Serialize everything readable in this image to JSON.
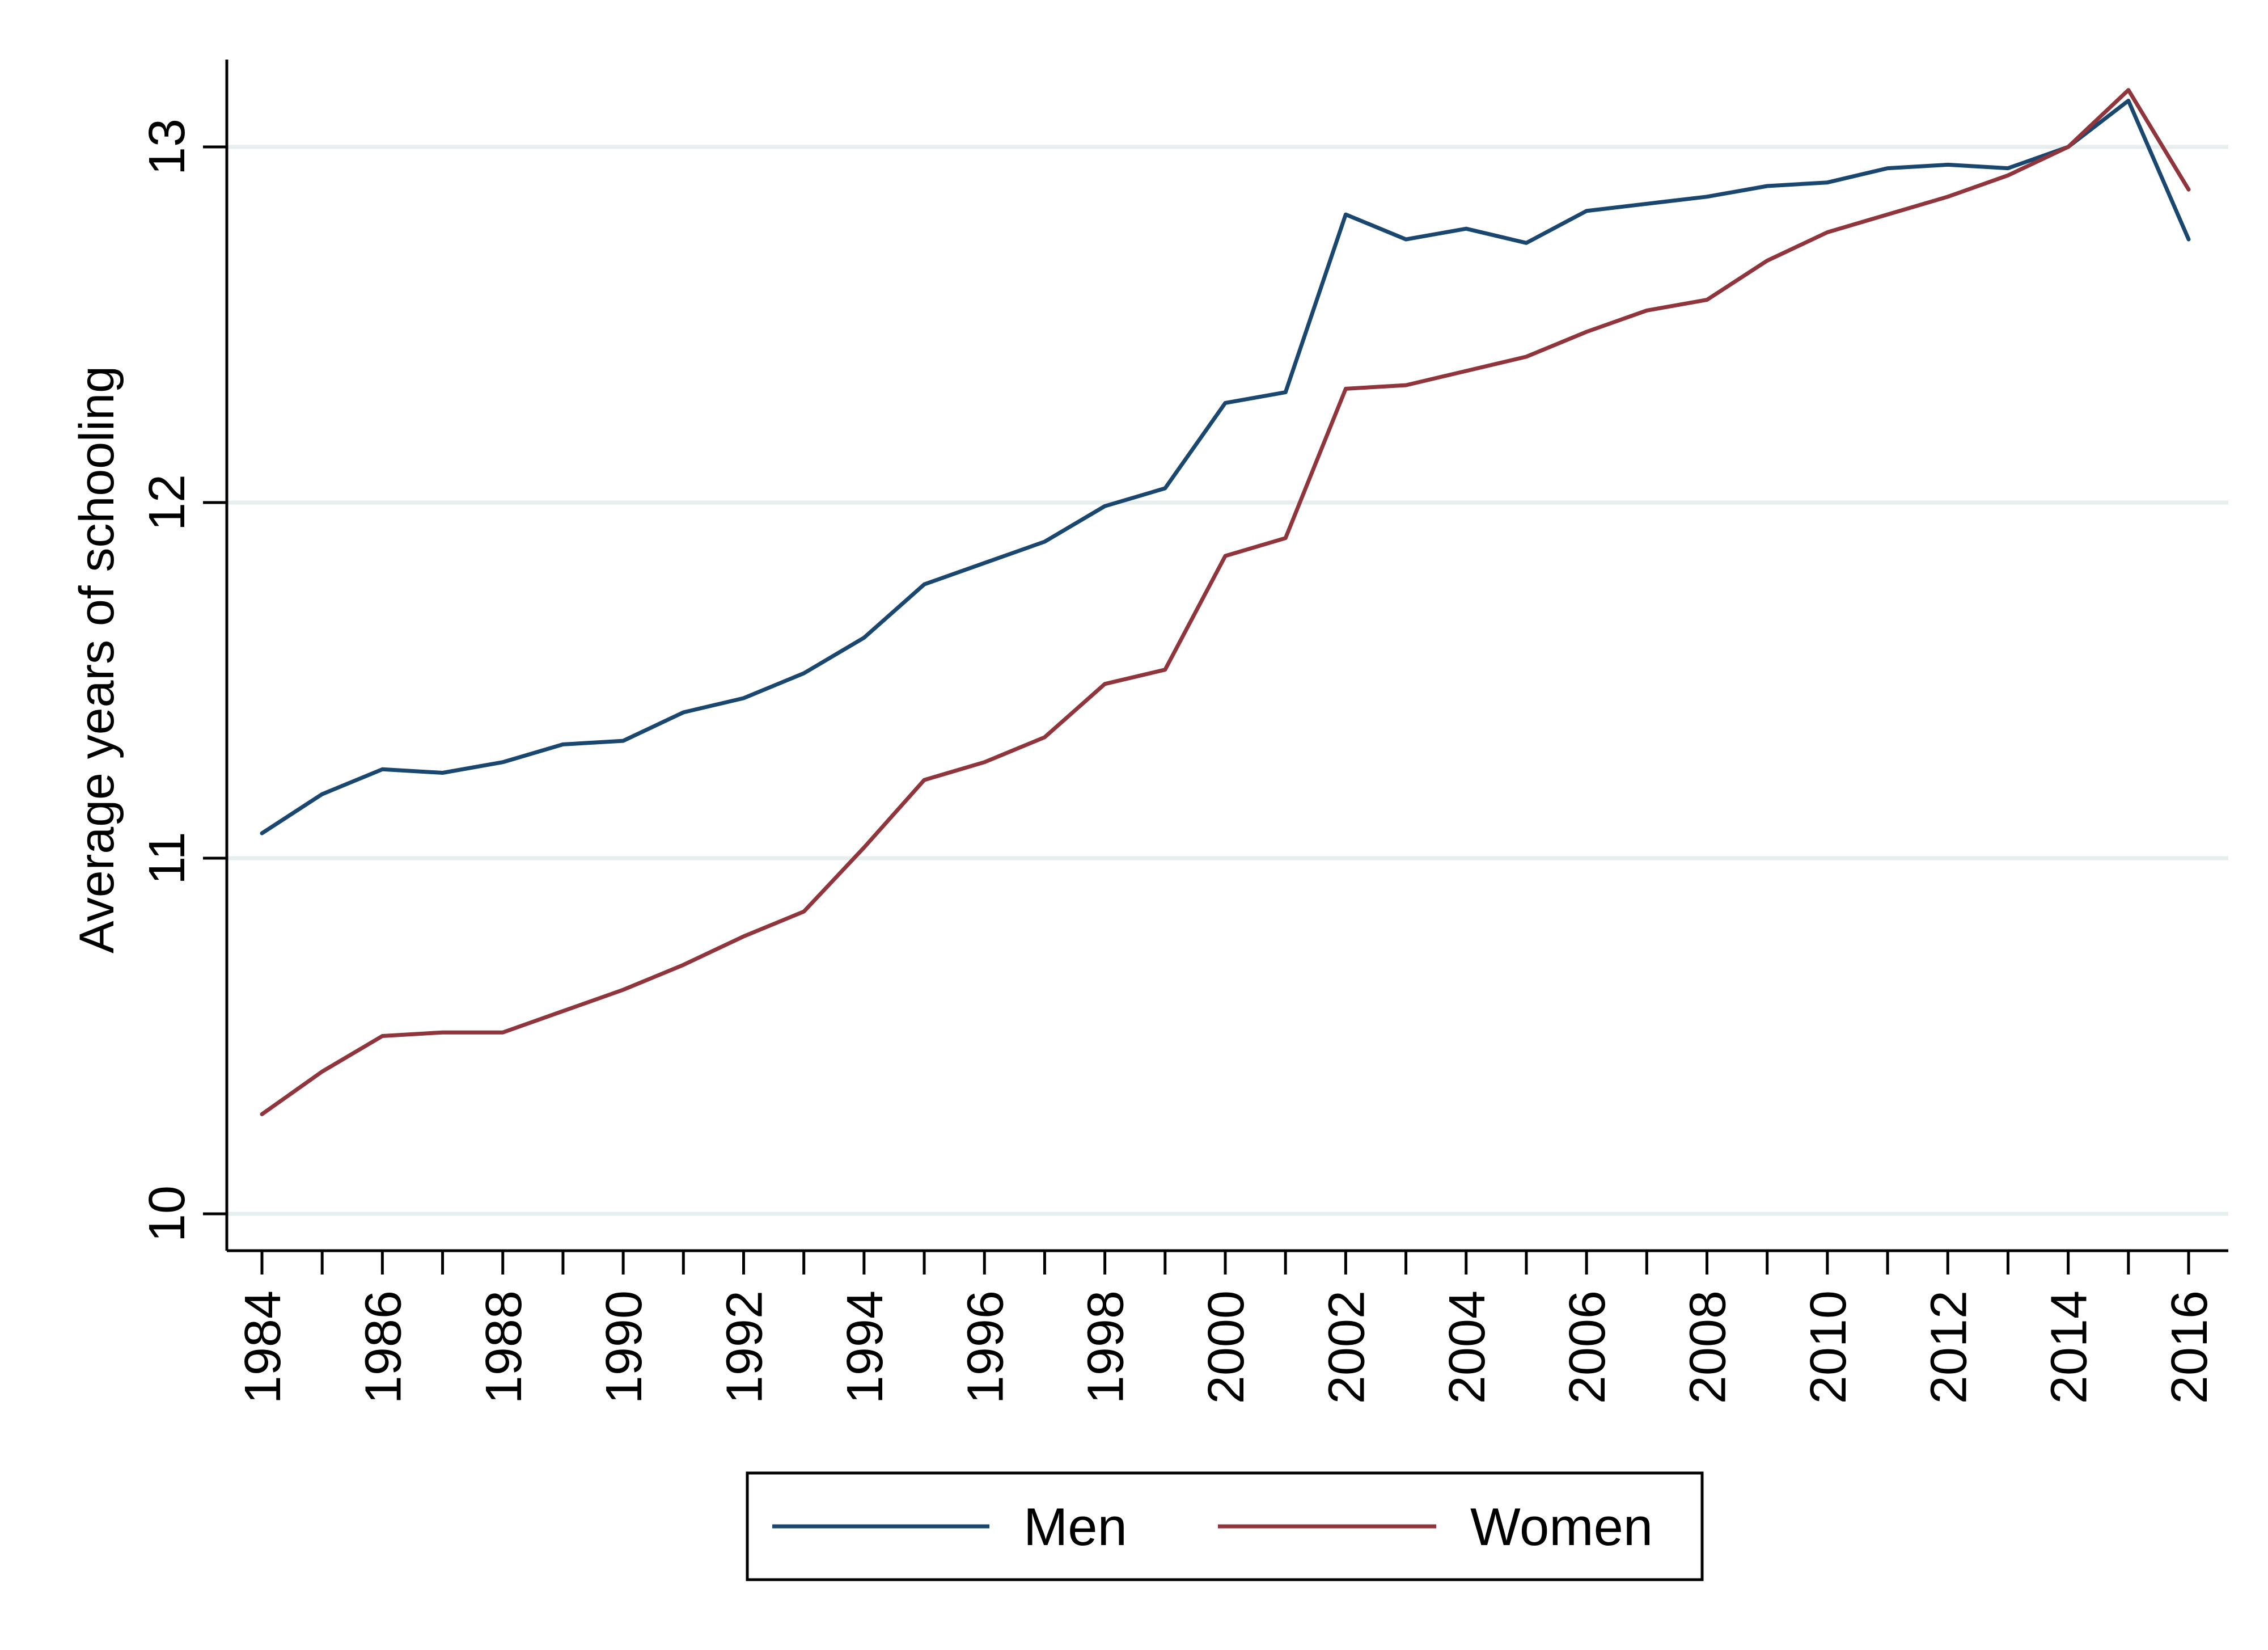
{
  "colors": {
    "background": "#ffffff",
    "gridline": "#e6eeee",
    "axis": "#000000",
    "men": "#1a476f",
    "women": "#90353b"
  },
  "chart_data": {
    "type": "line",
    "title": "",
    "xlabel": "",
    "ylabel": "Average years of schooling",
    "xlim": [
      1984,
      2016
    ],
    "ylim": [
      10,
      13.25
    ],
    "grid": true,
    "legend_placement": "bottom",
    "x_ticks": [
      "1984",
      "1986",
      "1988",
      "1990",
      "1992",
      "1994",
      "1996",
      "1998",
      "2000",
      "2002",
      "2004",
      "2006",
      "2008",
      "2010",
      "2012",
      "2014",
      "2016"
    ],
    "y_ticks": [
      "10",
      "11",
      "12",
      "13"
    ],
    "x": [
      1984,
      1985,
      1986,
      1987,
      1988,
      1989,
      1990,
      1991,
      1992,
      1993,
      1994,
      1995,
      1996,
      1997,
      1998,
      1999,
      2000,
      2001,
      2002,
      2003,
      2004,
      2005,
      2006,
      2007,
      2008,
      2009,
      2010,
      2011,
      2012,
      2013,
      2014,
      2015,
      2016
    ],
    "series": [
      {
        "name": "Men",
        "values": [
          11.07,
          11.18,
          11.25,
          11.24,
          11.27,
          11.32,
          11.33,
          11.41,
          11.45,
          11.52,
          11.62,
          11.77,
          11.83,
          11.89,
          11.99,
          12.04,
          12.28,
          12.31,
          12.81,
          12.74,
          12.77,
          12.73,
          12.82,
          12.84,
          12.86,
          12.89,
          12.9,
          12.94,
          12.95,
          12.94,
          13.0,
          13.13,
          12.74
        ],
        "color": "#1a476f"
      },
      {
        "name": "Women",
        "values": [
          10.28,
          10.4,
          10.5,
          10.51,
          10.51,
          10.57,
          10.63,
          10.7,
          10.78,
          10.85,
          11.03,
          11.22,
          11.27,
          11.34,
          11.49,
          11.53,
          11.85,
          11.9,
          12.32,
          12.33,
          12.37,
          12.41,
          12.48,
          12.54,
          12.57,
          12.68,
          12.76,
          12.81,
          12.86,
          12.92,
          13.0,
          13.16,
          12.88
        ],
        "color": "#90353b"
      }
    ]
  }
}
